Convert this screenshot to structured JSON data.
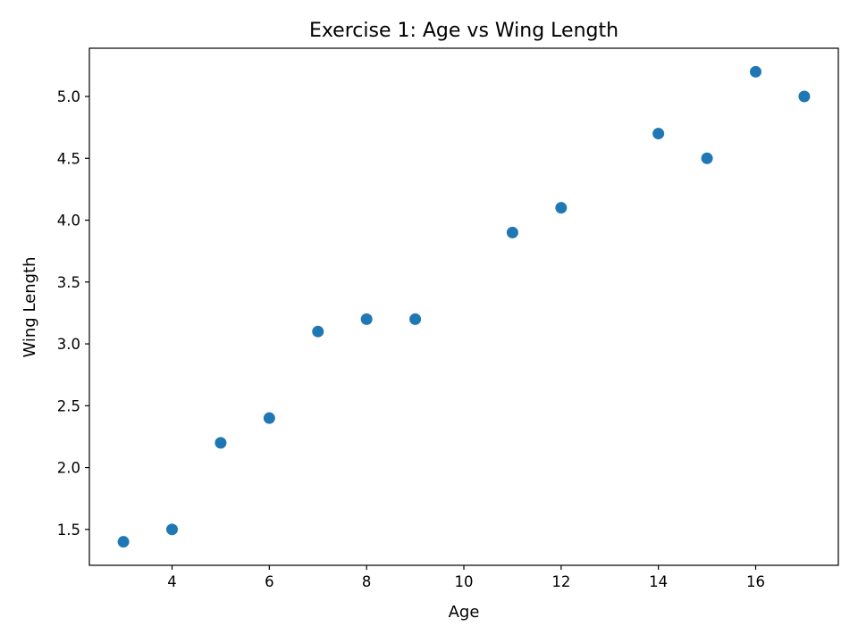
{
  "chart_data": {
    "type": "scatter",
    "title": "Exercise 1: Age vs Wing Length",
    "xlabel": "Age",
    "ylabel": "Wing Length",
    "x": [
      3,
      4,
      5,
      6,
      7,
      8,
      9,
      11,
      12,
      14,
      15,
      16,
      17
    ],
    "y": [
      1.4,
      1.5,
      2.2,
      2.4,
      3.1,
      3.2,
      3.2,
      3.9,
      4.1,
      4.7,
      4.5,
      5.2,
      5.0
    ],
    "xlim": [
      2.3,
      17.7
    ],
    "ylim": [
      1.21,
      5.39
    ],
    "xticks": [
      4,
      6,
      8,
      10,
      12,
      14,
      16
    ],
    "yticks": [
      1.5,
      2.0,
      2.5,
      3.0,
      3.5,
      4.0,
      4.5,
      5.0
    ],
    "xtick_labels": [
      "4",
      "6",
      "8",
      "10",
      "12",
      "14",
      "16"
    ],
    "ytick_labels": [
      "1.5",
      "2.0",
      "2.5",
      "3.0",
      "3.5",
      "4.0",
      "4.5",
      "5.0"
    ],
    "grid": false,
    "marker_color": "#1f77b4"
  }
}
